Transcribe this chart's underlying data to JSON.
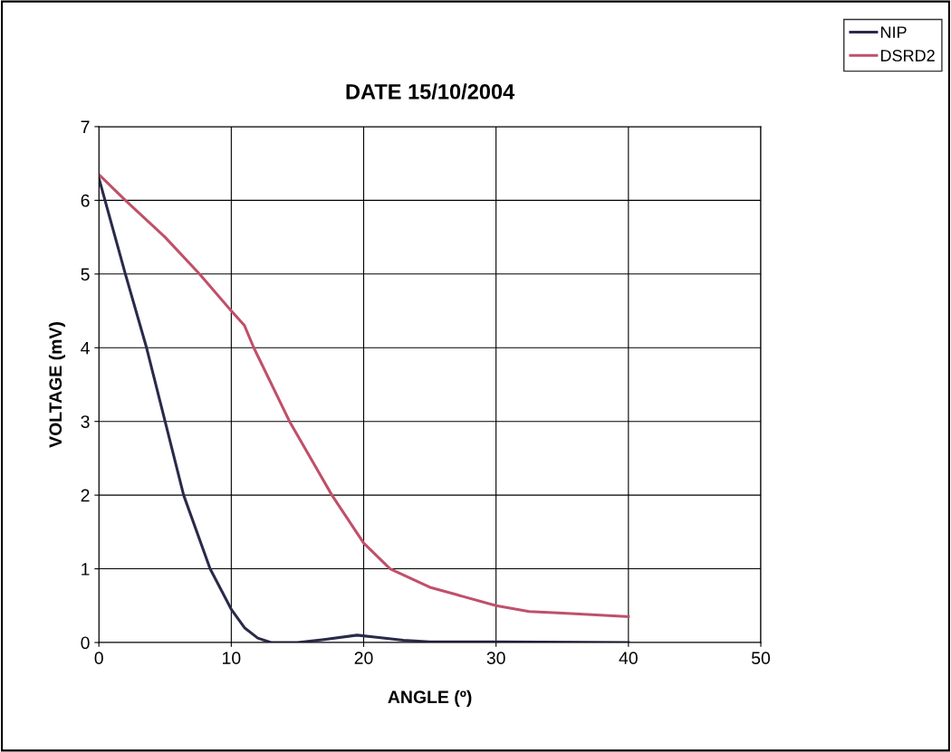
{
  "chart_data": {
    "type": "line",
    "title": "DATE 15/10/2004",
    "xlabel": "ANGLE (º)",
    "ylabel": "VOLTAGE (mV)",
    "xlim": [
      0,
      50
    ],
    "xticks": [
      0,
      10,
      20,
      30,
      40,
      50
    ],
    "ylim": [
      0,
      7
    ],
    "yticks": [
      0,
      1,
      2,
      3,
      4,
      5,
      6,
      7
    ],
    "grid": true,
    "legend": "top right",
    "marker": "none",
    "line_style": "solid",
    "series": [
      {
        "name": "NIP",
        "color": "#2a2a4a",
        "x": [
          0,
          2,
          3.6,
          5,
          6.4,
          8.4,
          10,
          11,
          12,
          13,
          15,
          17,
          19.5,
          21,
          23,
          25,
          30,
          40
        ],
        "values": [
          6.3,
          5,
          4,
          3,
          2,
          1,
          0.45,
          0.2,
          0.06,
          0,
          0,
          0.04,
          0.1,
          0.07,
          0.03,
          0.01,
          0.01,
          0
        ]
      },
      {
        "name": "DSRD2",
        "color": "#c0506a",
        "x": [
          0,
          2,
          5,
          7.6,
          10,
          11,
          11.7,
          14.4,
          17.6,
          20,
          22,
          25,
          27,
          30,
          32.5,
          35,
          40
        ],
        "values": [
          6.35,
          6,
          5.5,
          5,
          4.5,
          4.3,
          4,
          3,
          2,
          1.35,
          1.0,
          0.75,
          0.65,
          0.5,
          0.42,
          0.4,
          0.35
        ]
      }
    ]
  }
}
